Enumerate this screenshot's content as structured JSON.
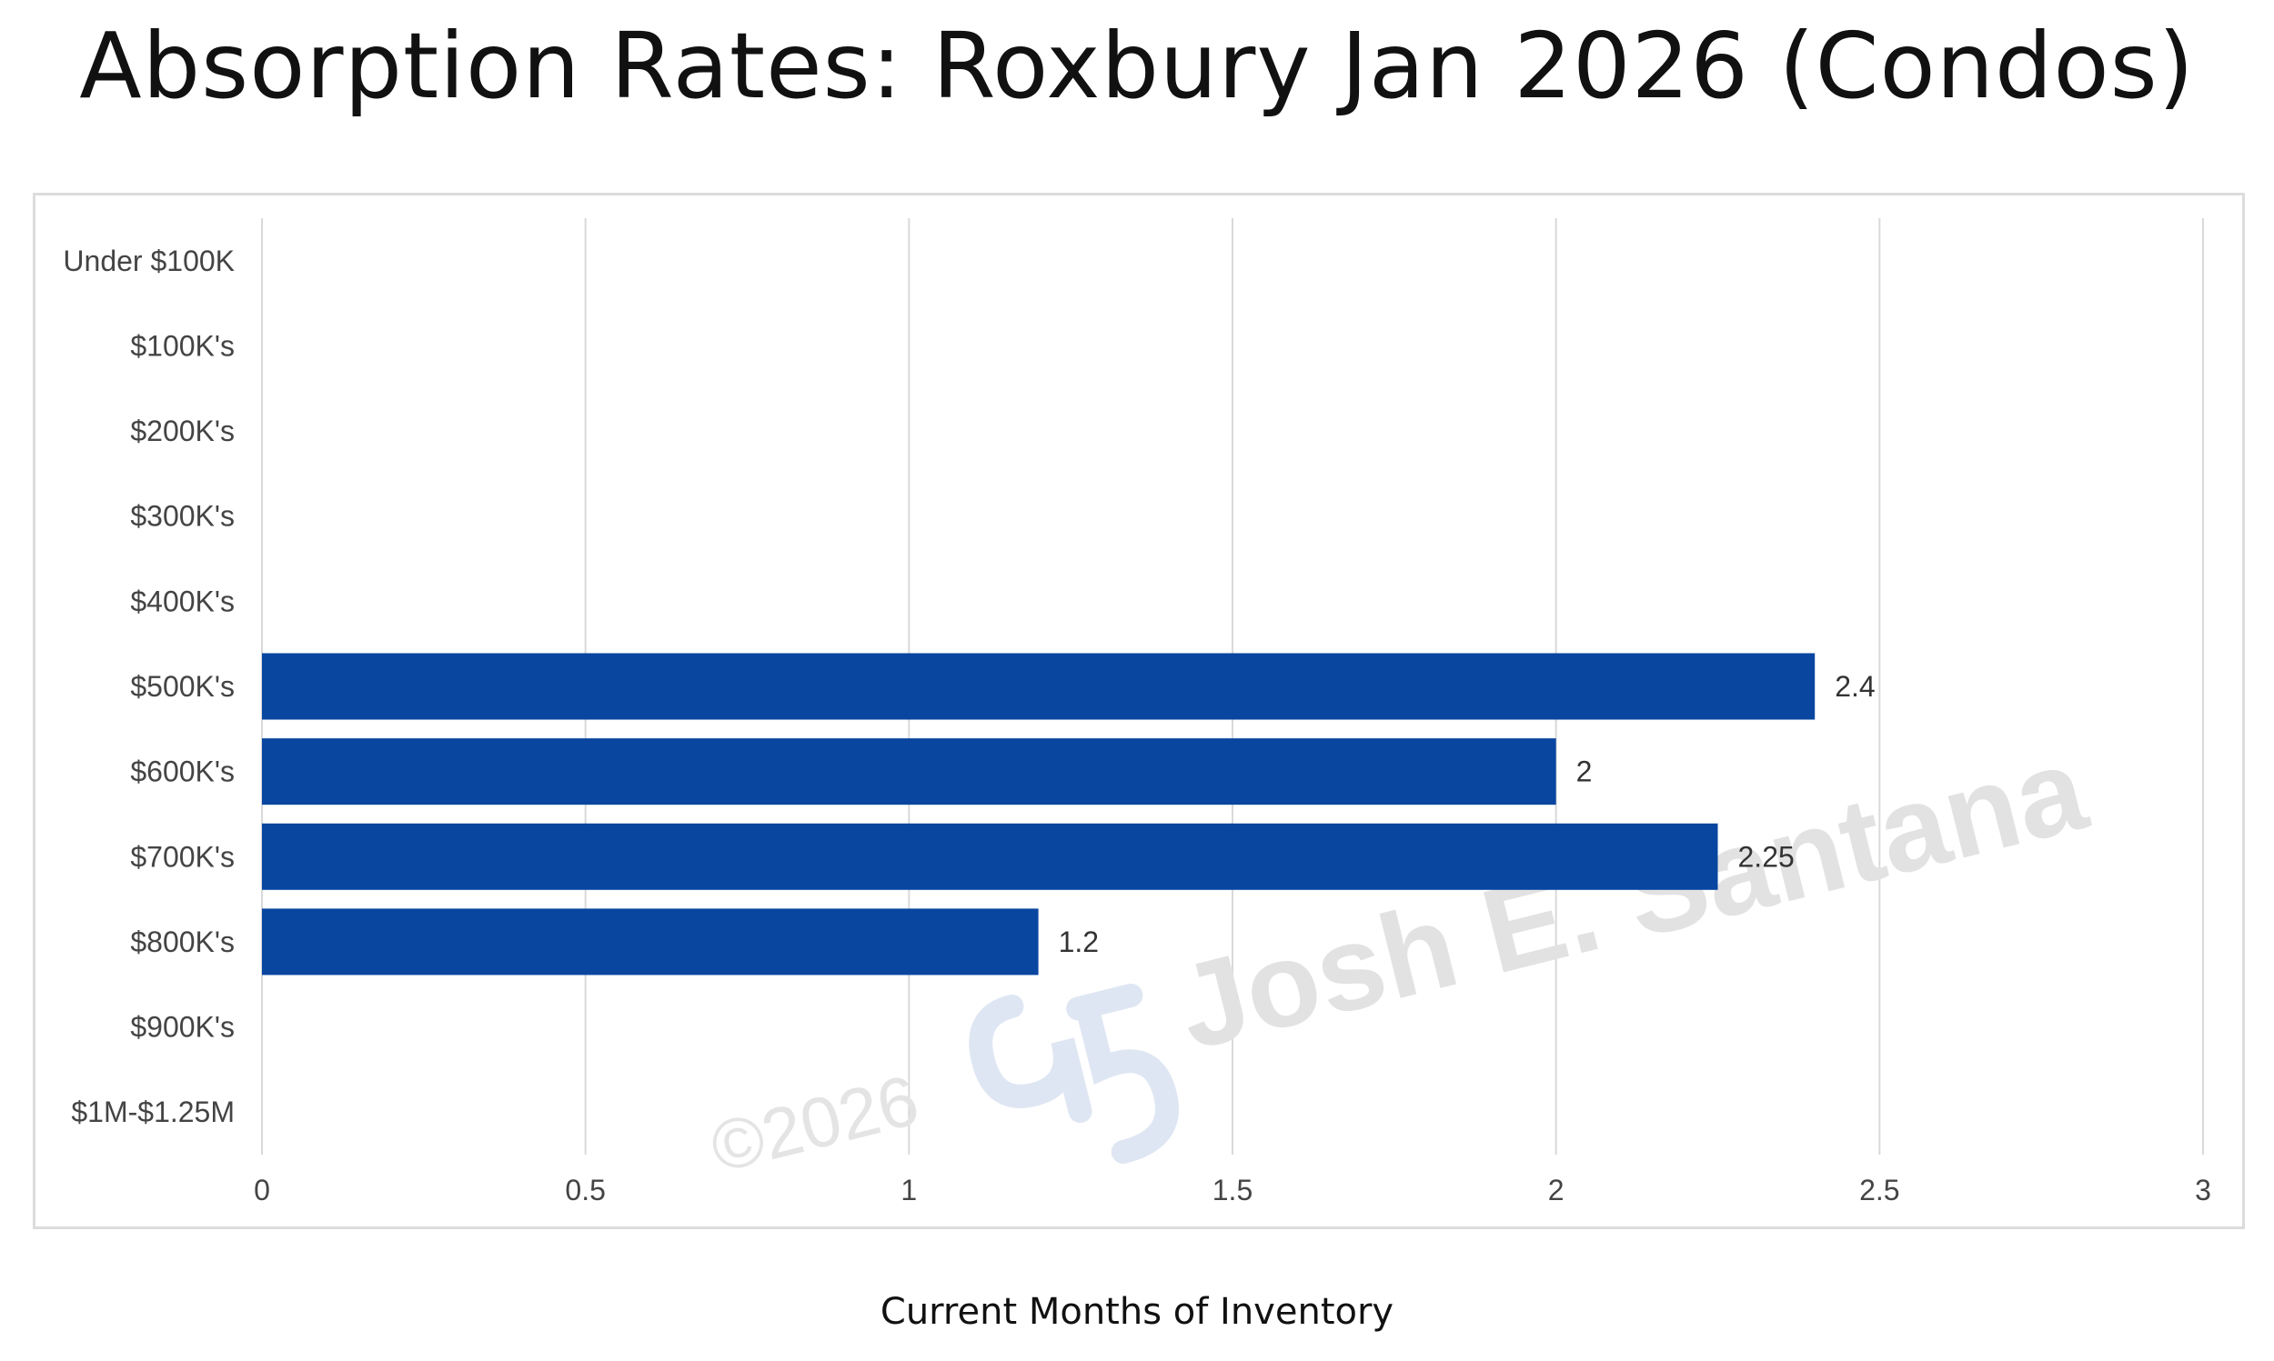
{
  "chart_data": {
    "type": "bar",
    "orientation": "horizontal",
    "title": "Absorption Rates: Roxbury Jan 2026 (Condos)",
    "xlabel": "Current Months of Inventory",
    "ylabel": "",
    "categories": [
      "Under $100K",
      "$100K's",
      "$200K's",
      "$300K's",
      "$400K's",
      "$500K's",
      "$600K's",
      "$700K's",
      "$800K's",
      "$900K's",
      "$1M-$1.25M"
    ],
    "values": [
      null,
      null,
      null,
      null,
      null,
      2.4,
      2,
      2.25,
      1.2,
      null,
      null
    ],
    "data_labels": [
      "",
      "",
      "",
      "",
      "",
      "2.4",
      "2",
      "2.25",
      "1.2",
      "",
      ""
    ],
    "xlim": [
      0,
      3
    ],
    "x_ticks": [
      "0",
      "0.5",
      "1",
      "1.5",
      "2",
      "2.5",
      "3"
    ],
    "grid": "vertical",
    "bar_color": "#0846a0",
    "watermark": {
      "copyright": "©2026",
      "name": "Josh E. Santana"
    }
  }
}
